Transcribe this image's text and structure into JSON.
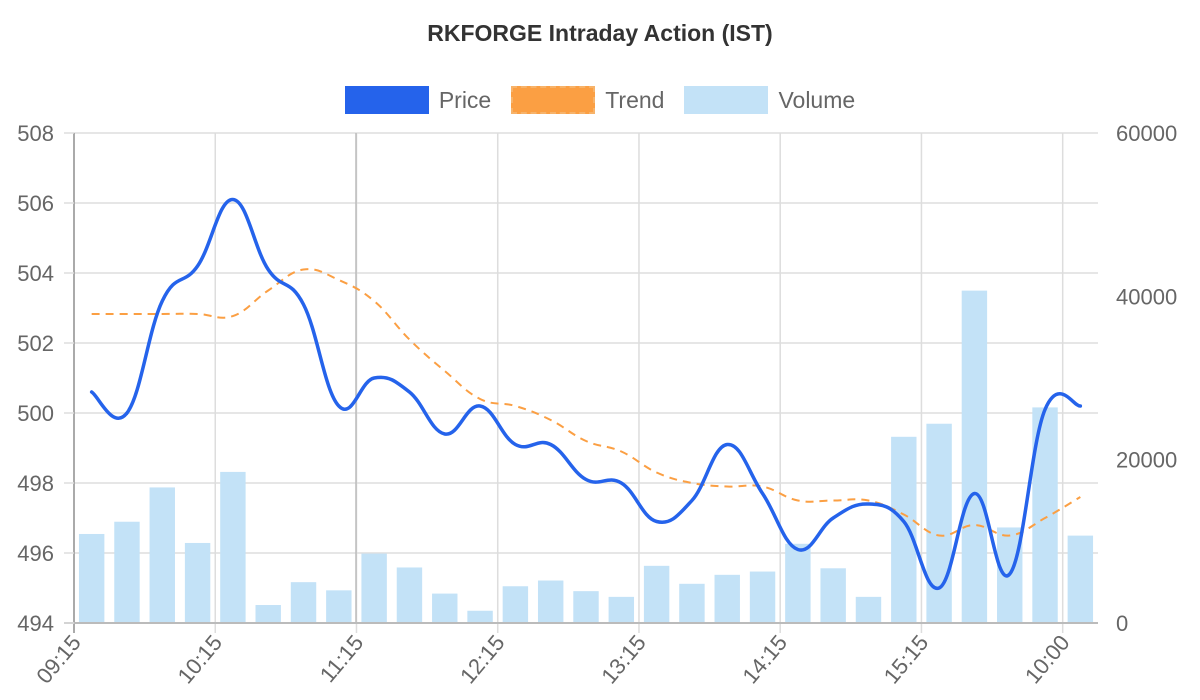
{
  "chart_data": {
    "type": "line+bar",
    "title": "RKFORGE Intraday Action (IST)",
    "xlabel": "",
    "ylabel": "",
    "legend": [
      {
        "name": "Price",
        "color": "#2563EB",
        "style": "solid"
      },
      {
        "name": "Trend",
        "color": "#FB9F43",
        "style": "dashed"
      },
      {
        "name": "Volume",
        "color": "#C3E2F7",
        "style": "bar"
      }
    ],
    "x_tick_labels": [
      "09:15",
      "10:15",
      "11:15",
      "12:15",
      "13:15",
      "14:15",
      "15:15",
      "10:00"
    ],
    "x_tick_every_n_categories": 4,
    "category_count": 29,
    "y_left": {
      "min": 494,
      "max": 508,
      "ticks": [
        494,
        496,
        498,
        500,
        502,
        504,
        506,
        508
      ]
    },
    "y_right": {
      "min": 0,
      "max": 60000,
      "ticks": [
        0,
        20000,
        40000,
        60000
      ]
    },
    "grid": true,
    "series": [
      {
        "name": "Price",
        "type": "line",
        "axis": "left",
        "values": [
          500.6,
          500.0,
          503.2,
          504.2,
          506.1,
          504.1,
          503.1,
          500.2,
          501.0,
          500.6,
          499.4,
          500.2,
          499.1,
          499.1,
          498.1,
          498.0,
          496.9,
          497.5,
          499.1,
          497.7,
          496.1,
          497.0,
          497.4,
          496.9,
          495.0,
          497.7,
          495.4,
          500.1,
          500.2
        ]
      },
      {
        "name": "Trend",
        "type": "line",
        "axis": "left",
        "values": [
          502.83,
          502.83,
          502.83,
          502.83,
          502.77,
          503.5,
          504.1,
          503.8,
          503.2,
          502.1,
          501.2,
          500.4,
          500.2,
          499.8,
          499.2,
          498.9,
          498.3,
          498.0,
          497.9,
          497.9,
          497.5,
          497.5,
          497.5,
          497.1,
          496.5,
          496.8,
          496.5,
          497.0,
          497.6
        ]
      },
      {
        "name": "Volume",
        "type": "bar",
        "axis": "right",
        "values": [
          10900,
          12400,
          16600,
          9800,
          18500,
          2200,
          5000,
          4000,
          8500,
          6800,
          3600,
          1500,
          4500,
          5200,
          3900,
          3200,
          7000,
          4800,
          5900,
          6300,
          9700,
          6700,
          3200,
          22800,
          24400,
          40700,
          11700,
          26400,
          10700
        ]
      }
    ]
  },
  "colors": {
    "price": "#2563EB",
    "trend": "#FB9F43",
    "volume": "#C3E2F7",
    "grid": "#DDDDDD",
    "axis_text": "#666666",
    "title_text": "#333333"
  }
}
